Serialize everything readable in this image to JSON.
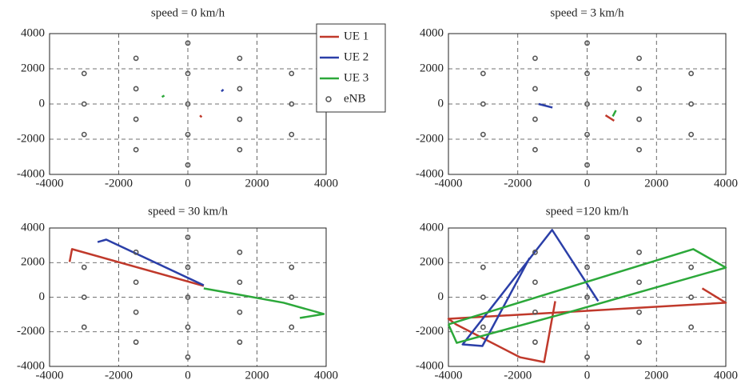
{
  "chart_data": [
    {
      "type": "line",
      "title": "speed = 0 km/h",
      "xlim": [
        -4000,
        4000
      ],
      "ylim": [
        -4000,
        4000
      ],
      "xticks": [
        -4000,
        -2000,
        0,
        2000,
        4000
      ],
      "yticks": [
        -4000,
        -2000,
        0,
        2000,
        4000
      ],
      "grid": true,
      "legend": "upper right",
      "series": [
        {
          "name": "UE 1",
          "color": "#c0392b",
          "style": "line",
          "x": [
            350,
            400
          ],
          "y": [
            -650,
            -750
          ]
        },
        {
          "name": "UE 2",
          "color": "#2b3fa8",
          "style": "line",
          "x": [
            970,
            1030
          ],
          "y": [
            720,
            820
          ]
        },
        {
          "name": "UE 3",
          "color": "#2ca83a",
          "style": "line",
          "x": [
            -750,
            -680
          ],
          "y": [
            400,
            480
          ]
        },
        {
          "name": "eNB",
          "color": "#555555",
          "style": "markers",
          "x": [
            0,
            0,
            0,
            0,
            0,
            1500,
            1500,
            1500,
            1500,
            -1500,
            -1500,
            -1500,
            -1500,
            3000,
            3000,
            3000,
            -3000,
            -3000,
            -3000
          ],
          "y": [
            3464,
            1732,
            0,
            -1732,
            -3464,
            2598,
            866,
            -866,
            -2598,
            2598,
            866,
            -866,
            -2598,
            1732,
            0,
            -1732,
            1732,
            0,
            -1732
          ]
        }
      ]
    },
    {
      "type": "line",
      "title": "speed = 3 km/h",
      "xlim": [
        -4000,
        4000
      ],
      "ylim": [
        -4000,
        4000
      ],
      "xticks": [
        -4000,
        -2000,
        0,
        2000,
        4000
      ],
      "yticks": [
        -4000,
        -2000,
        0,
        2000,
        4000
      ],
      "grid": true,
      "series": [
        {
          "color": "#c0392b",
          "style": "line",
          "x": [
            530,
            780
          ],
          "y": [
            -640,
            -950
          ]
        },
        {
          "color": "#2b3fa8",
          "style": "line",
          "x": [
            -1400,
            -1000
          ],
          "y": [
            0,
            -200
          ]
        },
        {
          "color": "#2ca83a",
          "style": "line",
          "x": [
            740,
            830
          ],
          "y": [
            -700,
            -360
          ]
        },
        {
          "color": "#555555",
          "style": "markers",
          "x": [
            0,
            0,
            0,
            0,
            0,
            1500,
            1500,
            1500,
            1500,
            -1500,
            -1500,
            -1500,
            -1500,
            3000,
            3000,
            3000,
            -3000,
            -3000,
            -3000
          ],
          "y": [
            3464,
            1732,
            0,
            -1732,
            -3464,
            2598,
            866,
            -866,
            -2598,
            2598,
            866,
            -866,
            -2598,
            1732,
            0,
            -1732,
            1732,
            0,
            -1732
          ]
        }
      ]
    },
    {
      "type": "line",
      "title": "speed = 30 km/h",
      "xlim": [
        -4000,
        4000
      ],
      "ylim": [
        -4000,
        4000
      ],
      "xticks": [
        -4000,
        -2000,
        0,
        2000,
        4000
      ],
      "yticks": [
        -4000,
        -2000,
        0,
        2000,
        4000
      ],
      "grid": true,
      "series": [
        {
          "color": "#c0392b",
          "style": "line",
          "x": [
            -3420,
            -3350,
            460
          ],
          "y": [
            2040,
            2780,
            650
          ]
        },
        {
          "color": "#2b3fa8",
          "style": "line",
          "x": [
            -2610,
            -2360,
            460
          ],
          "y": [
            3190,
            3330,
            690
          ]
        },
        {
          "color": "#2ca83a",
          "style": "line",
          "x": [
            460,
            1500,
            2770,
            3930,
            3240
          ],
          "y": [
            510,
            140,
            -320,
            -970,
            -1200
          ]
        },
        {
          "color": "#555555",
          "style": "markers",
          "x": [
            0,
            0,
            0,
            0,
            0,
            1500,
            1500,
            1500,
            1500,
            -1500,
            -1500,
            -1500,
            -1500,
            3000,
            3000,
            3000,
            -3000,
            -3000,
            -3000
          ],
          "y": [
            3464,
            1732,
            0,
            -1732,
            -3464,
            2598,
            866,
            -866,
            -2598,
            2598,
            866,
            -866,
            -2598,
            1732,
            0,
            -1732,
            1732,
            0,
            -1732
          ]
        }
      ]
    },
    {
      "type": "line",
      "title": "speed =120 km/h",
      "xlim": [
        -4000,
        4000
      ],
      "ylim": [
        -4000,
        4000
      ],
      "xticks": [
        -4000,
        -2000,
        0,
        2000,
        4000
      ],
      "yticks": [
        -4000,
        -2000,
        0,
        2000,
        4000
      ],
      "grid": true,
      "series": [
        {
          "color": "#c0392b",
          "style": "line",
          "x": [
            3320,
            4000,
            -4000,
            -3780,
            -1940,
            -1240,
            -920
          ],
          "y": [
            510,
            -320,
            -1250,
            -1570,
            -3470,
            -3750,
            -230
          ]
        },
        {
          "color": "#2b3fa8",
          "style": "line",
          "x": [
            320,
            -1010,
            -3590,
            -3020,
            -1660
          ],
          "y": [
            -230,
            3890,
            -2730,
            -2820,
            2270
          ]
        },
        {
          "color": "#2ca83a",
          "style": "line",
          "x": [
            -4000,
            3060,
            4000,
            -550,
            -3760,
            -4000
          ],
          "y": [
            -1570,
            2780,
            1710,
            -880,
            -2640,
            -1570
          ]
        },
        {
          "color": "#555555",
          "style": "markers",
          "x": [
            0,
            0,
            0,
            0,
            0,
            1500,
            1500,
            1500,
            1500,
            -1500,
            -1500,
            -1500,
            -1500,
            3000,
            3000,
            3000,
            -3000,
            -3000,
            -3000
          ],
          "y": [
            3464,
            1732,
            0,
            -1732,
            -3464,
            2598,
            866,
            -866,
            -2598,
            2598,
            866,
            -866,
            -2598,
            1732,
            0,
            -1732,
            1732,
            0,
            -1732
          ]
        }
      ]
    }
  ]
}
